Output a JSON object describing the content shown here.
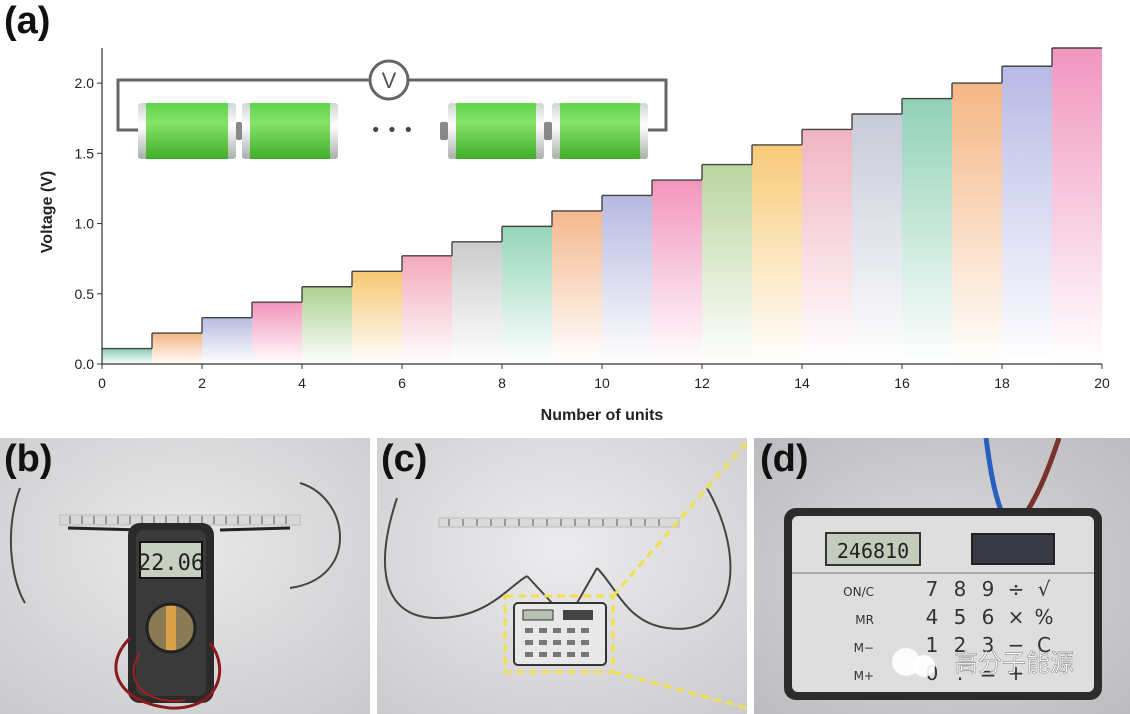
{
  "panels": {
    "a": "(a)",
    "b": "(b)",
    "c": "(c)",
    "d": "(d)"
  },
  "chart_data": {
    "type": "line",
    "step": "post",
    "xlabel": "Number of units",
    "ylabel": "Voltage (V)",
    "xlim": [
      0,
      20
    ],
    "ylim": [
      0,
      2.25
    ],
    "x_ticks": [
      0,
      2,
      4,
      6,
      8,
      10,
      12,
      14,
      16,
      18,
      20
    ],
    "y_ticks": [
      0.0,
      0.5,
      1.0,
      1.5,
      2.0
    ],
    "y_tick_labels": [
      "0.0",
      "0.5",
      "1.0",
      "1.5",
      "2.0"
    ],
    "x": [
      0,
      1,
      2,
      3,
      4,
      5,
      6,
      7,
      8,
      9,
      10,
      11,
      12,
      13,
      14,
      15,
      16,
      17,
      18,
      19
    ],
    "values": [
      0.11,
      0.22,
      0.33,
      0.44,
      0.55,
      0.66,
      0.77,
      0.87,
      0.98,
      1.09,
      1.2,
      1.31,
      1.42,
      1.56,
      1.67,
      1.78,
      1.89,
      2.0,
      2.12,
      2.25
    ],
    "step_colors": [
      "#7fc9b0",
      "#f2b27a",
      "#b4b9e0",
      "#f28fb7",
      "#a7cf8a",
      "#f7c56a",
      "#f2a5b8",
      "#c9c9c9",
      "#8fd3b8",
      "#f4b488",
      "#b3b6df",
      "#f290bb",
      "#b6d39a",
      "#f8c872",
      "#f0b0c0",
      "#c4c8d6",
      "#8ccfb4",
      "#f4b27e",
      "#b3b6e4",
      "#f090bc"
    ],
    "grid": false,
    "legend": "none"
  },
  "inset": {
    "voltmeter_symbol": "V",
    "ellipsis": "• • •"
  },
  "photos": {
    "multimeter_reading": "22.06",
    "calculator_display": "246810",
    "calculator_keys": [
      [
        "ON/C",
        "7",
        "8",
        "9",
        "÷",
        "√"
      ],
      [
        "MR",
        "4",
        "5",
        "6",
        "×",
        "%"
      ],
      [
        "M−",
        "1",
        "2",
        "3",
        "−",
        "C"
      ],
      [
        "M+",
        "0",
        ".",
        "=",
        "+",
        ""
      ]
    ],
    "watermark": "高分子能源"
  }
}
